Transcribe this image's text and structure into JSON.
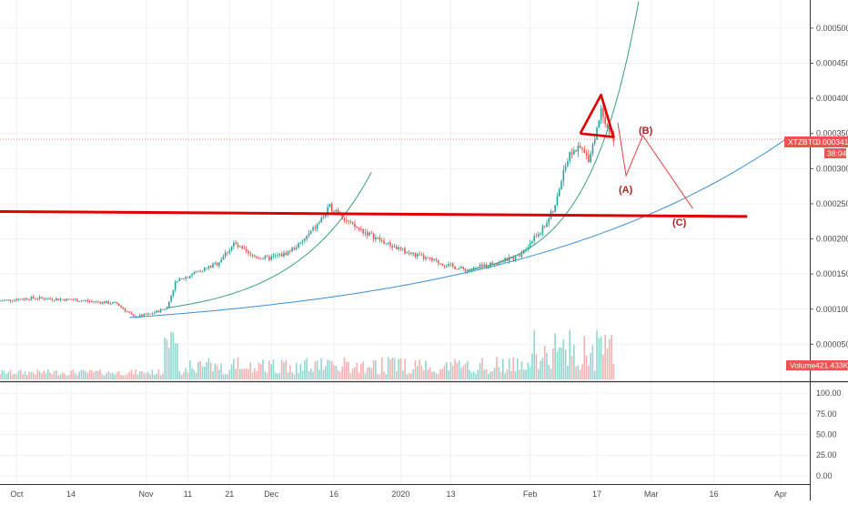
{
  "chart_data": {
    "type": "candlestick",
    "symbol": "XTZBTC",
    "last_price": "0.0003419",
    "countdown": "38:04",
    "volume_label": "Volume",
    "volume_value": "421.433K",
    "colors": {
      "up": "#26a69a",
      "down": "#ef5350",
      "trendline": "#e00000",
      "blue_curve": "#3a8fd6",
      "green_curve": "#3aa07a",
      "projection": "#e04040",
      "wave_label": "#b22222",
      "price_tag": "#ef5350"
    },
    "x_axis_labels": [
      "Oct",
      "14",
      "Nov",
      "11",
      "21",
      "Dec",
      "16",
      "2020",
      "13",
      "Feb",
      "17",
      "Mar",
      "16",
      "Apr"
    ],
    "y_axis_labels": [
      "0.0005000",
      "0.0004500",
      "0.0004000",
      "0.0003500",
      "0.0003000",
      "0.0002500",
      "0.0002000",
      "0.0001500",
      "0.0001000",
      "0.0000500"
    ],
    "y_ticks": [
      0.0005,
      0.00045,
      0.0004,
      0.00035,
      0.0003,
      0.00025,
      0.0002,
      0.00015,
      0.0001,
      5e-05
    ],
    "ylim": [
      0.0,
      0.00054
    ],
    "oscillator_labels": [
      "100.00",
      "75.00",
      "50.00",
      "25.00",
      "0.00"
    ],
    "oscillator_ticks": [
      100,
      75,
      50,
      25,
      0
    ],
    "oscillator_range": [
      -10,
      110
    ],
    "wave_labels": [
      "(A)",
      "(B)",
      "(C)"
    ],
    "projection_path": [
      {
        "date": "2020-02-22",
        "price": 0.000365
      },
      {
        "date": "2020-02-24",
        "price": 0.00029
      },
      {
        "date": "2020-02-28",
        "price": 0.000347
      },
      {
        "date": "2020-03-11",
        "price": 0.000243
      }
    ],
    "support_line": [
      {
        "date": "2019-09-27",
        "price": 0.000239
      },
      {
        "date": "2020-03-24",
        "price": 0.000232
      }
    ],
    "triangle": [
      {
        "date": "2020-02-13",
        "price": 0.00035
      },
      {
        "date": "2020-02-18",
        "price": 0.000405
      },
      {
        "date": "2020-02-21",
        "price": 0.000345
      }
    ],
    "price_series": [
      {
        "date": "2019-09-27",
        "price": 0.000112
      },
      {
        "date": "2019-10-05",
        "price": 0.000116
      },
      {
        "date": "2019-10-15",
        "price": 0.000113
      },
      {
        "date": "2019-10-25",
        "price": 0.000108
      },
      {
        "date": "2019-10-29",
        "price": 8.9e-05
      },
      {
        "date": "2019-11-02",
        "price": 9.3e-05
      },
      {
        "date": "2019-11-06",
        "price": 0.000102
      },
      {
        "date": "2019-11-08",
        "price": 0.000138
      },
      {
        "date": "2019-11-12",
        "price": 0.00015
      },
      {
        "date": "2019-11-18",
        "price": 0.000165
      },
      {
        "date": "2019-11-22",
        "price": 0.000193
      },
      {
        "date": "2019-11-26",
        "price": 0.000176
      },
      {
        "date": "2019-11-30",
        "price": 0.000172
      },
      {
        "date": "2019-12-04",
        "price": 0.000178
      },
      {
        "date": "2019-12-08",
        "price": 0.000193
      },
      {
        "date": "2019-12-12",
        "price": 0.00022
      },
      {
        "date": "2019-12-15",
        "price": 0.000245
      },
      {
        "date": "2019-12-17",
        "price": 0.00024
      },
      {
        "date": "2019-12-20",
        "price": 0.00022
      },
      {
        "date": "2019-12-24",
        "price": 0.000208
      },
      {
        "date": "2019-12-28",
        "price": 0.000195
      },
      {
        "date": "2020-01-02",
        "price": 0.000182
      },
      {
        "date": "2020-01-07",
        "price": 0.000172
      },
      {
        "date": "2020-01-12",
        "price": 0.000163
      },
      {
        "date": "2020-01-17",
        "price": 0.000155
      },
      {
        "date": "2020-01-21",
        "price": 0.000162
      },
      {
        "date": "2020-01-25",
        "price": 0.000168
      },
      {
        "date": "2020-01-29",
        "price": 0.000175
      },
      {
        "date": "2020-02-01",
        "price": 0.000195
      },
      {
        "date": "2020-02-04",
        "price": 0.000215
      },
      {
        "date": "2020-02-07",
        "price": 0.000245
      },
      {
        "date": "2020-02-09",
        "price": 0.0003
      },
      {
        "date": "2020-02-11",
        "price": 0.000325
      },
      {
        "date": "2020-02-13",
        "price": 0.000328
      },
      {
        "date": "2020-02-15",
        "price": 0.000315
      },
      {
        "date": "2020-02-17",
        "price": 0.000355
      },
      {
        "date": "2020-02-18",
        "price": 0.000388
      },
      {
        "date": "2020-02-19",
        "price": 0.00037
      },
      {
        "date": "2020-02-20",
        "price": 0.00035
      },
      {
        "date": "2020-02-21",
        "price": 0.00034
      }
    ]
  }
}
